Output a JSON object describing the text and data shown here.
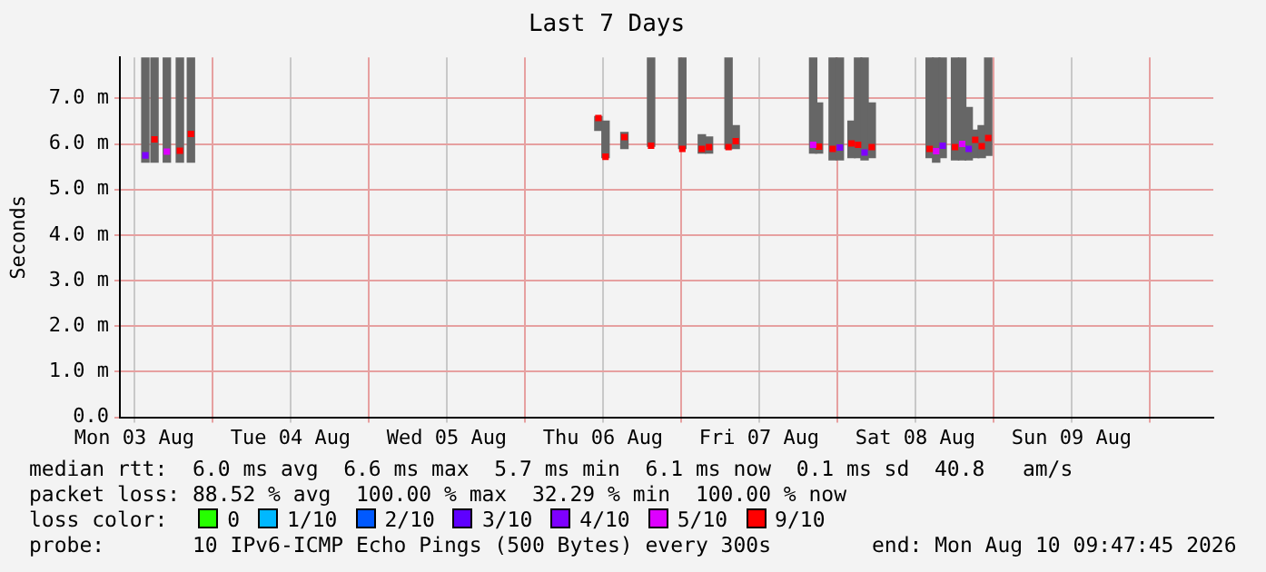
{
  "chart_data": {
    "type": "scatter",
    "title": "Last 7 Days",
    "ylabel": "Seconds",
    "xlim": [
      "2026-08-03T09:47",
      "2026-08-10T09:47"
    ],
    "xticks": [
      {
        "value": "2026-08-03T12:00",
        "label": "Mon 03 Aug"
      },
      {
        "value": "2026-08-04T00:00",
        "label": null
      },
      {
        "value": "2026-08-04T12:00",
        "label": "Tue 04 Aug"
      },
      {
        "value": "2026-08-05T00:00",
        "label": null
      },
      {
        "value": "2026-08-05T12:00",
        "label": "Wed 05 Aug"
      },
      {
        "value": "2026-08-06T00:00",
        "label": null
      },
      {
        "value": "2026-08-06T12:00",
        "label": "Thu 06 Aug"
      },
      {
        "value": "2026-08-07T00:00",
        "label": null
      },
      {
        "value": "2026-08-07T12:00",
        "label": "Fri 07 Aug"
      },
      {
        "value": "2026-08-08T00:00",
        "label": null
      },
      {
        "value": "2026-08-08T12:00",
        "label": "Sat 08 Aug"
      },
      {
        "value": "2026-08-09T00:00",
        "label": null
      },
      {
        "value": "2026-08-09T12:00",
        "label": "Sun 09 Aug"
      },
      {
        "value": "2026-08-10T00:00",
        "label": null
      }
    ],
    "ylim": [
      0,
      7.9
    ],
    "yticks": [
      {
        "value": 0,
        "label": "0.0"
      },
      {
        "value": 1,
        "label": "1.0 m"
      },
      {
        "value": 2,
        "label": "2.0 m"
      },
      {
        "value": 3,
        "label": "3.0 m"
      },
      {
        "value": 4,
        "label": "4.0 m"
      },
      {
        "value": 5,
        "label": "5.0 m"
      },
      {
        "value": 6,
        "label": "6.0 m"
      },
      {
        "value": 7,
        "label": "7.0 m"
      }
    ],
    "grid": true,
    "marker": "square",
    "legend": "bottom",
    "legend_title": "loss color:",
    "series": [
      {
        "type": "bar",
        "color": "#666666",
        "x": [
          "2026-08-03T13:42",
          "2026-08-03T15:06",
          "2026-08-03T17:00",
          "2026-08-03T19:00",
          "2026-08-03T20:42",
          "2026-08-06T11:18",
          "2026-08-06T12:24",
          "2026-08-06T15:18",
          "2026-08-06T19:24",
          "2026-08-07T00:12",
          "2026-08-07T03:12",
          "2026-08-07T04:18",
          "2026-08-07T07:18",
          "2026-08-07T08:24",
          "2026-08-07T20:18",
          "2026-08-07T21:12",
          "2026-08-07T23:18",
          "2026-08-08T00:24",
          "2026-08-08T02:12",
          "2026-08-08T03:12",
          "2026-08-08T04:12",
          "2026-08-08T05:18",
          "2026-08-08T14:12",
          "2026-08-08T15:12",
          "2026-08-08T16:12",
          "2026-08-08T18:06",
          "2026-08-08T19:12",
          "2026-08-08T20:12",
          "2026-08-08T21:12",
          "2026-08-08T22:12",
          "2026-08-08T23:12"
        ],
        "base": [
          5.6,
          5.6,
          5.6,
          5.6,
          5.6,
          6.3,
          5.7,
          5.9,
          5.95,
          5.9,
          5.8,
          5.8,
          5.9,
          5.9,
          5.8,
          5.8,
          5.65,
          5.65,
          5.7,
          5.7,
          5.65,
          5.7,
          5.7,
          5.6,
          5.7,
          5.65,
          5.65,
          5.65,
          5.7,
          5.7,
          5.75
        ],
        "values": [
          2.3,
          2.3,
          2.3,
          2.3,
          2.3,
          0.3,
          0.8,
          0.35,
          1.95,
          2.0,
          0.4,
          0.35,
          2.0,
          0.5,
          2.1,
          1.1,
          2.25,
          2.25,
          0.8,
          2.2,
          2.25,
          1.2,
          2.2,
          2.3,
          2.2,
          2.25,
          2.25,
          1.15,
          0.6,
          0.7,
          2.15
        ]
      },
      {
        "type": "scatter",
        "name": "0",
        "color": "#26ff00"
      },
      {
        "type": "scatter",
        "name": "1/10",
        "color": "#00b8ff"
      },
      {
        "type": "scatter",
        "name": "2/10",
        "color": "#0059ff"
      },
      {
        "type": "scatter",
        "name": "3/10",
        "color": "#5e00ff"
      },
      {
        "name": "4/10",
        "color": "#7e00ff",
        "x": [
          "2026-08-03T13:42",
          "2026-08-08T00:24",
          "2026-08-08T04:12",
          "2026-08-08T16:12",
          "2026-08-08T20:12"
        ],
        "values": [
          5.75,
          5.92,
          5.81,
          5.96,
          5.89
        ]
      },
      {
        "name": "5/10",
        "color": "#dd00ff",
        "x": [
          "2026-08-03T17:00",
          "2026-08-07T20:18",
          "2026-08-08T15:12",
          "2026-08-08T19:12"
        ],
        "values": [
          5.83,
          5.98,
          5.84,
          6.0
        ]
      },
      {
        "name": "9/10",
        "color": "#ff0000",
        "x": [
          "2026-08-03T15:06",
          "2026-08-03T19:00",
          "2026-08-03T20:42",
          "2026-08-06T11:18",
          "2026-08-06T12:24",
          "2026-08-06T15:18",
          "2026-08-06T19:24",
          "2026-08-07T00:12",
          "2026-08-07T03:12",
          "2026-08-07T04:18",
          "2026-08-07T07:18",
          "2026-08-07T08:24",
          "2026-08-07T21:12",
          "2026-08-07T23:18",
          "2026-08-08T02:12",
          "2026-08-08T03:12",
          "2026-08-08T05:18",
          "2026-08-08T14:12",
          "2026-08-08T18:06",
          "2026-08-08T21:12",
          "2026-08-08T22:12",
          "2026-08-08T23:12"
        ],
        "values": [
          6.1,
          5.85,
          6.22,
          6.57,
          5.72,
          6.15,
          5.96,
          5.89,
          5.89,
          5.93,
          5.93,
          6.06,
          5.94,
          5.89,
          6.01,
          5.98,
          5.93,
          5.89,
          5.93,
          6.09,
          5.95,
          6.13
        ]
      }
    ],
    "annotations": [
      "median rtt:  6.0 ms avg  6.6 ms max  5.7 ms min  6.1 ms now  0.1 ms sd  40.8   am/s",
      "packet loss: 88.52 % avg  100.00 % max  32.29 % min  100.00 % now",
      "probe:       10 IPv6-ICMP Echo Pings (500 Bytes) every 300s",
      "end: Mon Aug 10 09:47:45 2026"
    ]
  }
}
